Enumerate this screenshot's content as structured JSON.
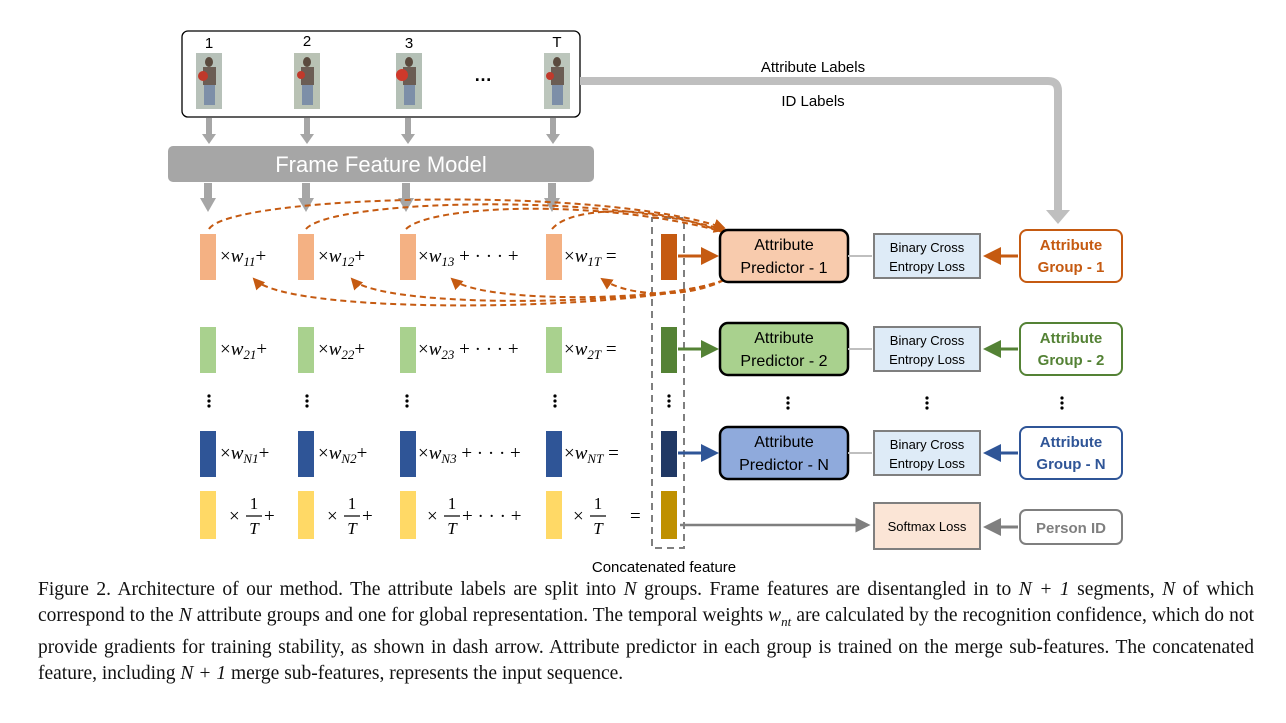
{
  "frame_numbers": [
    "1",
    "2",
    "3",
    "T"
  ],
  "ellipsis_frames": "…",
  "frame_model_label": "Frame Feature Model",
  "attribute_labels_text": "Attribute Labels",
  "id_labels_text": "ID Labels",
  "concatenated_feature_label": "Concatenated feature",
  "rows": [
    {
      "weights": [
        "w11",
        "w12",
        "w13",
        "w1T"
      ],
      "predictor": "Attribute Predictor - 1",
      "loss": "Binary Cross Entropy Loss",
      "group": "Attribute Group - 1",
      "color": "#c55a11",
      "feature_color": "#f4b183",
      "predictor_fill": "#f8cbad",
      "concat_color": "#c55a11"
    },
    {
      "weights": [
        "w21",
        "w22",
        "w23",
        "w2T"
      ],
      "predictor": "Attribute Predictor - 2",
      "loss": "Binary Cross Entropy Loss",
      "group": "Attribute Group - 2",
      "color": "#548235",
      "feature_color": "#a9d18e",
      "predictor_fill": "#a9d18e",
      "concat_color": "#548235"
    },
    {
      "weights": [
        "wN1",
        "wN2",
        "wN3",
        "wNT"
      ],
      "predictor": "Attribute Predictor - N",
      "loss": "Binary Cross Entropy Loss",
      "group": "Attribute Group - N",
      "color": "#2f5597",
      "feature_color": "#2f5597",
      "predictor_fill": "#8faadc",
      "concat_color": "#203864"
    }
  ],
  "global_row": {
    "weight": "1/T",
    "loss": "Softmax Loss",
    "target": "Person ID",
    "feature_color": "#ffd966",
    "concat_color": "#bf9000"
  },
  "colors": {
    "gray_arrow": "#bfbfbf",
    "model_fill": "#a6a6a6",
    "loss_fill": "#deebf7",
    "softmax_fill": "#fbe5d6",
    "dash_box": "#7f7f7f"
  },
  "caption": {
    "p1": "Figure 2. Architecture of our method. The attribute labels are split into ",
    "m1": "N",
    "p2": " groups. Frame features are disentangled in to ",
    "m2": "N + 1",
    "p3": " segments, ",
    "m3": "N",
    "p4": " of which correspond to the ",
    "m4": "N",
    "p5": " attribute groups and one for global representation. The temporal weights ",
    "m5": "w",
    "m5sub": "nt",
    "p6": " are calculated by the recognition confidence, which do not provide gradients for training stability, as shown in dash arrow. Attribute predictor in each group is trained on the merge sub-features. The concatenated feature, including ",
    "m6": "N + 1",
    "p7": " merge sub-features, represents the input sequence."
  }
}
